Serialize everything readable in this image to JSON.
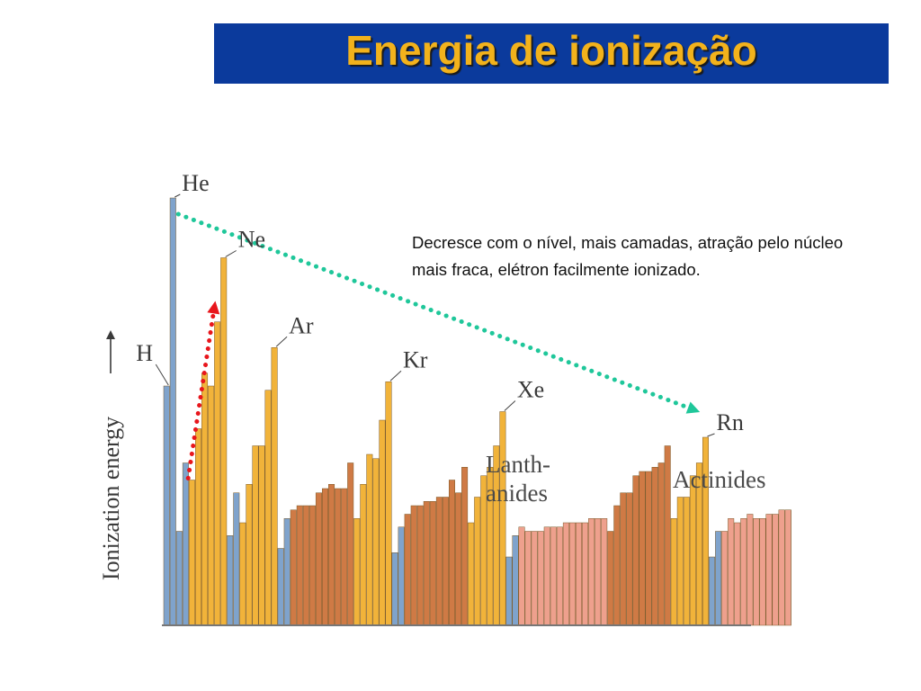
{
  "slide": {
    "title": "Energia de ionização",
    "note": "Decresce com o nível, mais camadas, atração pelo núcleo mais fraca, elétron facilmente ionizado."
  },
  "colors": {
    "title_bg": "#0b3a9c",
    "title_text": "#f2b21c",
    "s_block": "#7fa3cc",
    "p_block": "#f1b33a",
    "d_block": "#cf7a45",
    "f_block": "#eea08d",
    "trend_arrow": "#1fc79a",
    "period_arrow": "#e8161c"
  },
  "chart_data": {
    "type": "bar",
    "ylabel": "Ionization energy",
    "ylim": [
      0,
      100
    ],
    "element_labels": [
      {
        "text": "He",
        "index": 1
      },
      {
        "text": "Ne",
        "index": 9
      },
      {
        "text": "H",
        "index": 0
      },
      {
        "text": "Ar",
        "index": 17
      },
      {
        "text": "Kr",
        "index": 35
      },
      {
        "text": "Xe",
        "index": 53
      },
      {
        "text": "Rn",
        "index": 85
      }
    ],
    "group_labels": [
      "Lanth-",
      "anides",
      "Actinides"
    ],
    "values": [
      56,
      100,
      22,
      38,
      34,
      46,
      59,
      56,
      71,
      86,
      21,
      31,
      24,
      33,
      42,
      42,
      55,
      65,
      18,
      25,
      27,
      28,
      28,
      28,
      31,
      32,
      33,
      32,
      32,
      38,
      25,
      33,
      40,
      39,
      48,
      57,
      17,
      23,
      26,
      28,
      28,
      29,
      29,
      30,
      30,
      34,
      31,
      37,
      24,
      30,
      35,
      37,
      42,
      50,
      16,
      21,
      23,
      22,
      22,
      22,
      23,
      23,
      23,
      24,
      24,
      24,
      24,
      25,
      25,
      25,
      22,
      28,
      31,
      31,
      35,
      36,
      36,
      37,
      38,
      42,
      25,
      30,
      30,
      35,
      38,
      44,
      16,
      22,
      22,
      25,
      24,
      25,
      26,
      25,
      25,
      26,
      26,
      27,
      27,
      27,
      27,
      28,
      28
    ]
  }
}
